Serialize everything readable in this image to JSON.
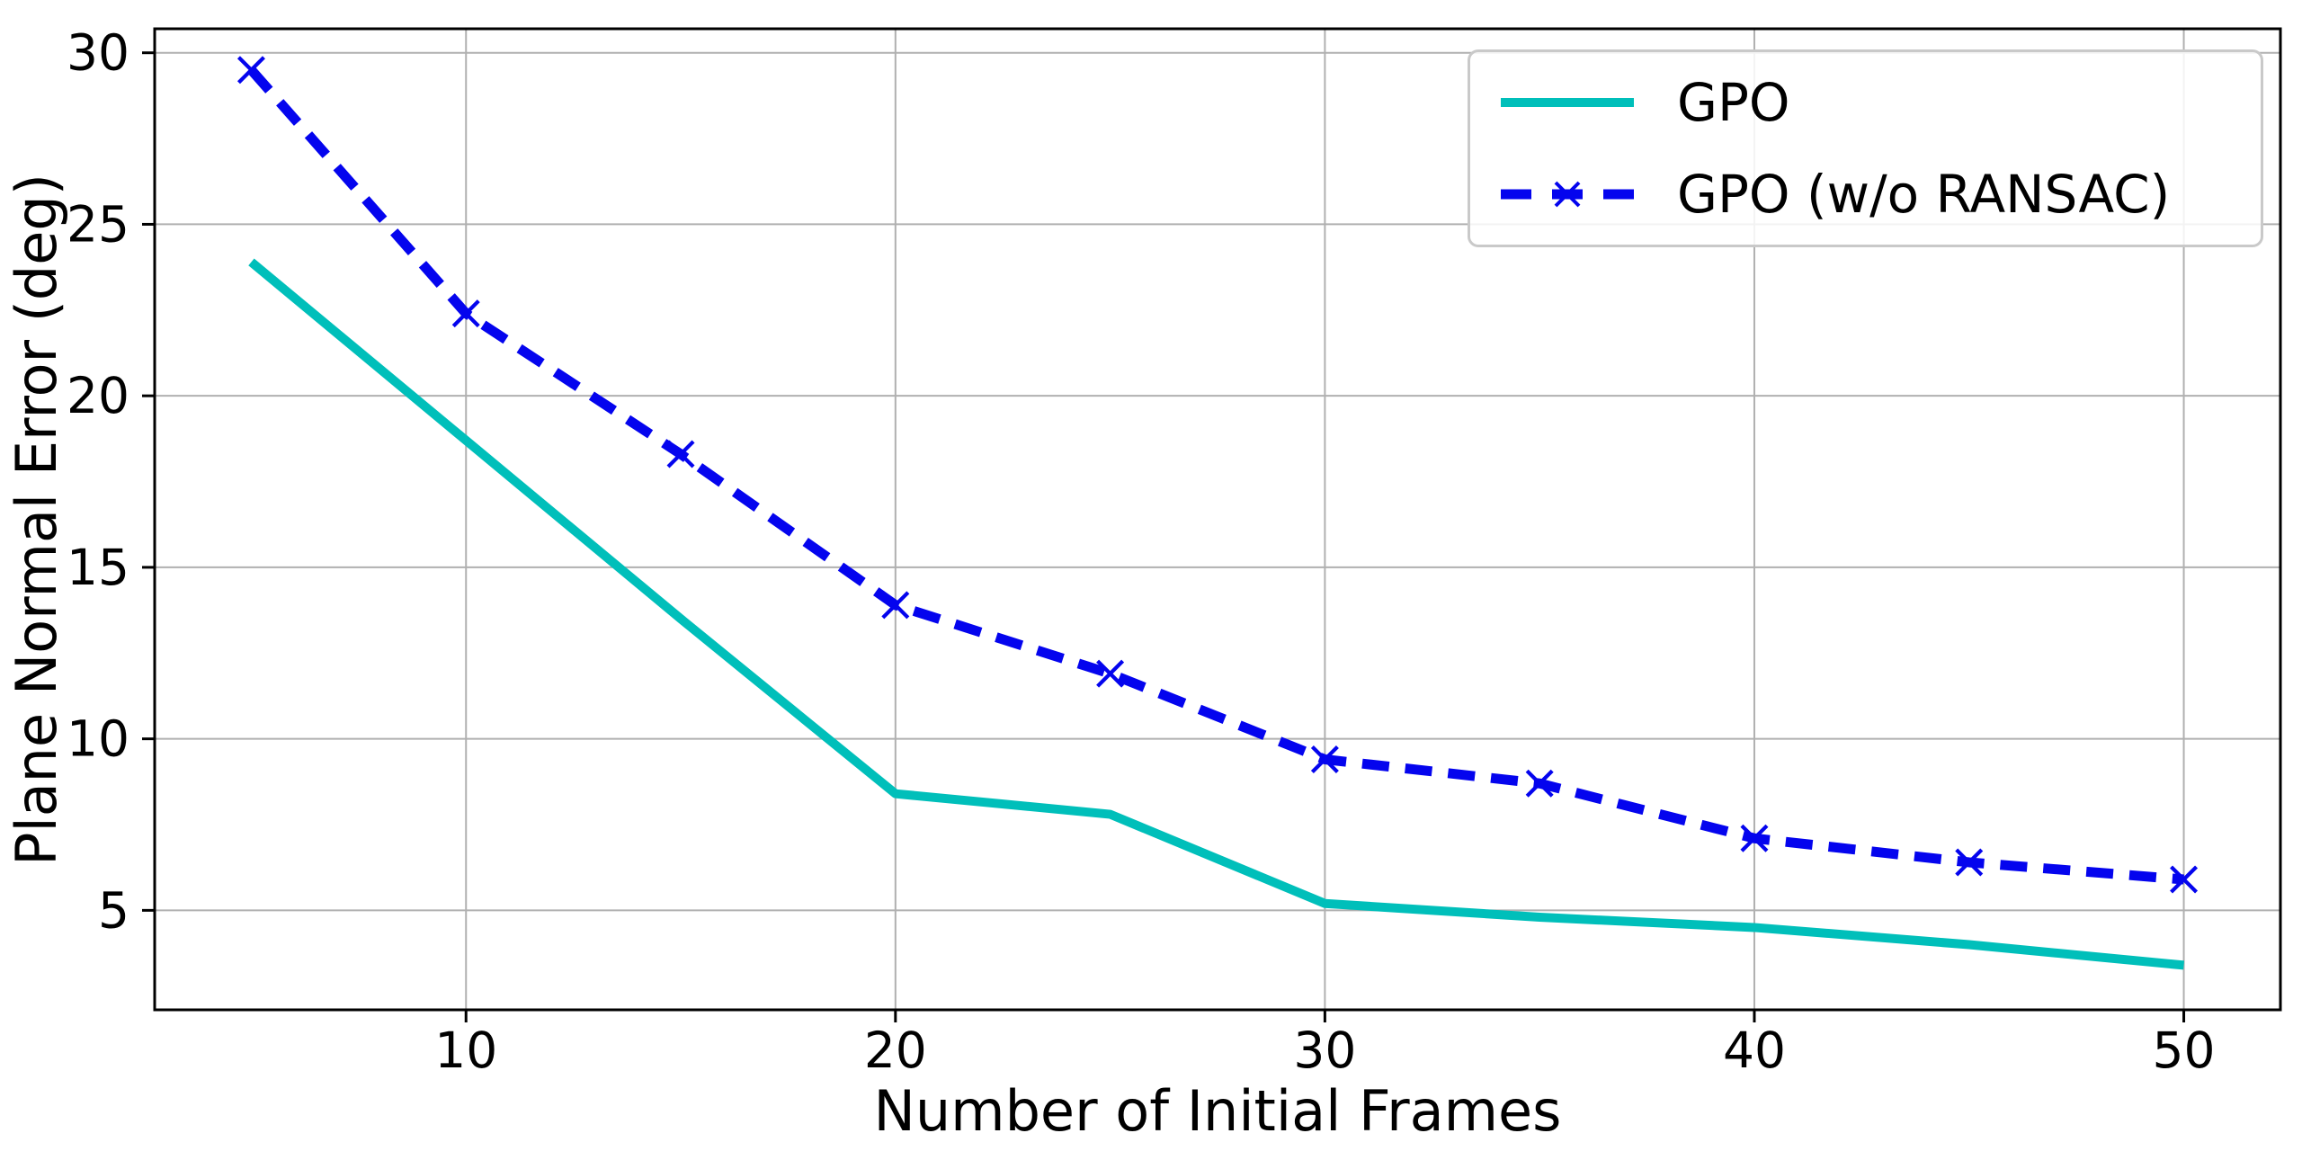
{
  "chart_data": {
    "type": "line",
    "title": "",
    "xlabel": "Number of Initial Frames",
    "ylabel": "Plane Normal Error (deg)",
    "x": [
      5,
      10,
      15,
      20,
      25,
      30,
      35,
      40,
      45,
      50
    ],
    "series": [
      {
        "name": "GPO",
        "color": "#00bfba",
        "style": "solid",
        "marker": "none",
        "values": [
          23.9,
          18.7,
          13.5,
          8.4,
          7.8,
          5.2,
          4.8,
          4.5,
          4.0,
          3.4
        ]
      },
      {
        "name": "GPO (w/o RANSAC)",
        "color": "#0404ee",
        "style": "dashed",
        "marker": "x",
        "values": [
          29.5,
          22.4,
          18.3,
          13.9,
          11.9,
          9.4,
          8.7,
          7.1,
          6.4,
          5.9
        ]
      }
    ],
    "xticks": [
      10,
      20,
      30,
      40,
      50
    ],
    "yticks": [
      5,
      10,
      15,
      20,
      25,
      30
    ],
    "xlim": [
      2.75,
      52.25
    ],
    "ylim": [
      2.1,
      30.7
    ],
    "grid": true,
    "grid_color": "#b0b0b0",
    "axis_color": "#000000",
    "legend_position": "upper right"
  }
}
